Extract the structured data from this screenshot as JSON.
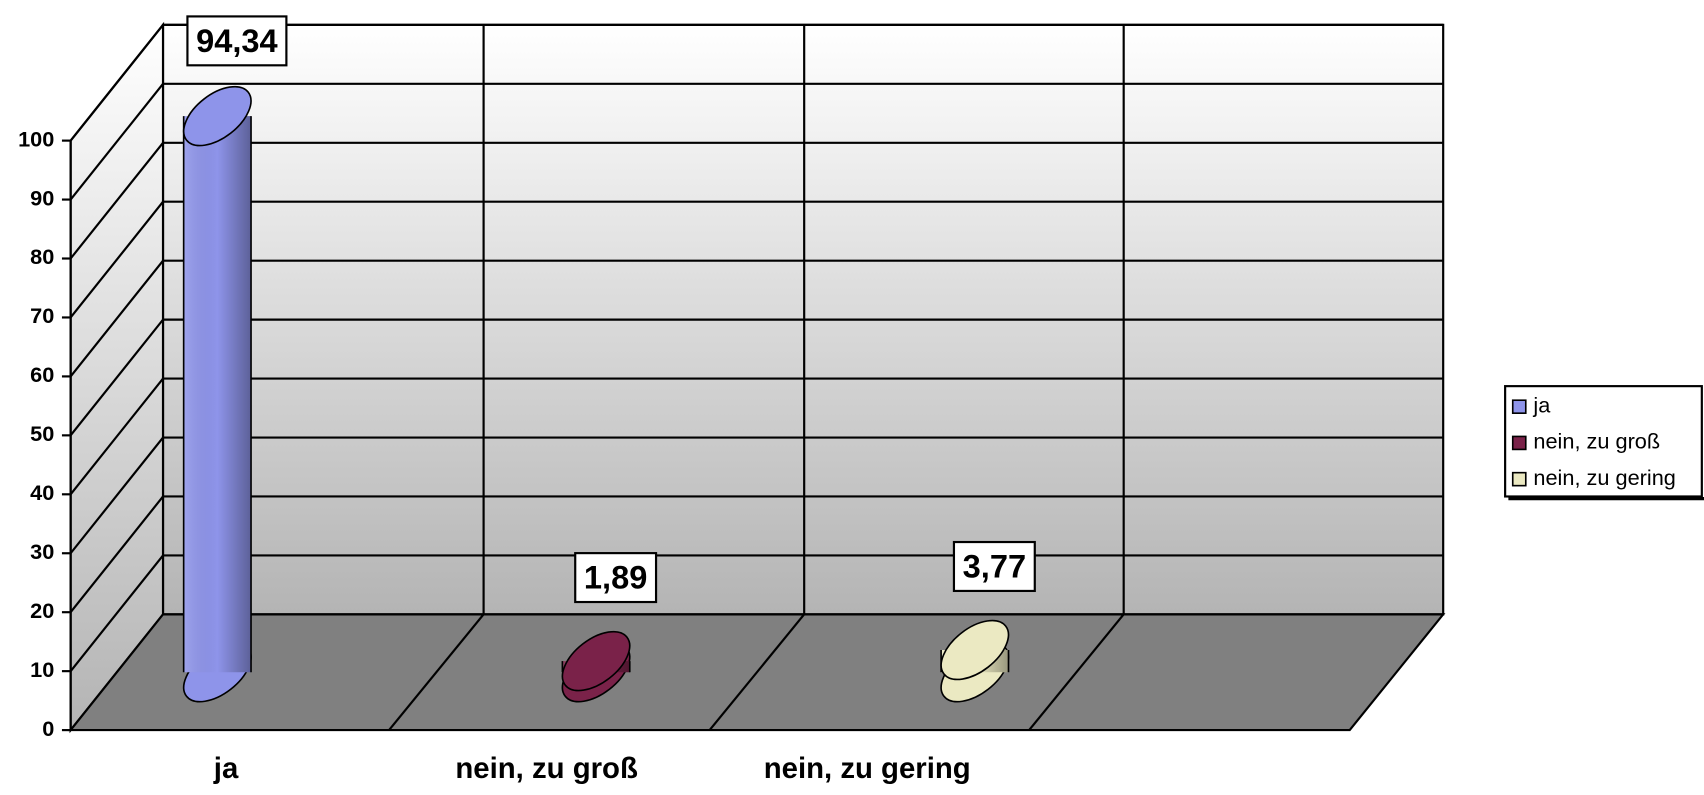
{
  "chart_data": {
    "type": "bar",
    "categories": [
      "ja",
      "nein, zu groß",
      "nein, zu gering"
    ],
    "values": [
      94.34,
      1.89,
      3.77
    ],
    "value_labels": [
      "94,34",
      "1,89",
      "3,77"
    ],
    "colors": [
      "#8e94ea",
      "#7a2249",
      "#ebe9c2"
    ],
    "ylim": [
      0,
      100
    ],
    "yticks": [
      0,
      10,
      20,
      30,
      40,
      50,
      60,
      70,
      80,
      90,
      100
    ],
    "grid": true,
    "legend": "right"
  }
}
